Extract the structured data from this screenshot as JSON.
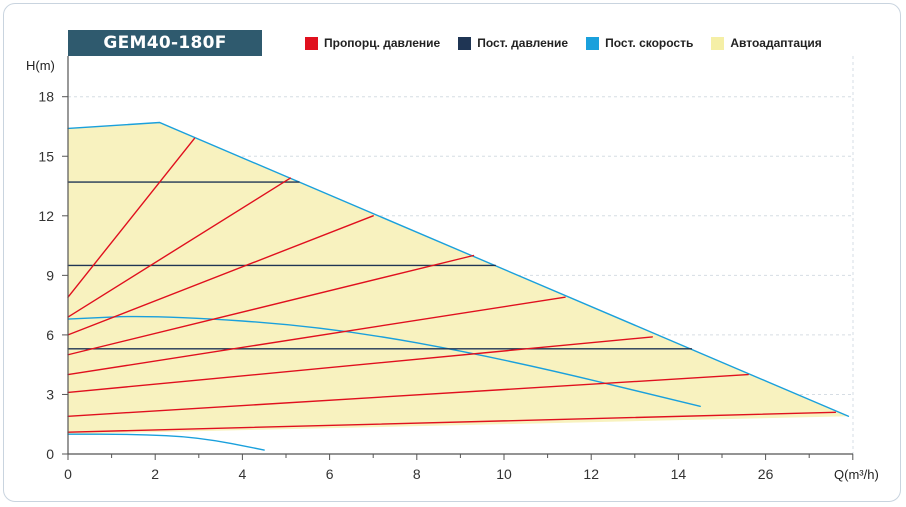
{
  "header": {
    "model": "GEM40-180F"
  },
  "legend": {
    "items": [
      {
        "label": "Пропорц. давление",
        "color": "#e0101e"
      },
      {
        "label": "Пост. давление",
        "color": "#1f3554"
      },
      {
        "label": "Пост. скорость",
        "color": "#1aa0dc"
      },
      {
        "label": "Автоадаптация",
        "color": "#f5efa6"
      }
    ]
  },
  "chart_data": {
    "type": "line",
    "ylabel": "H(m)",
    "xlabel": "Q(m³/h)",
    "x_ticks": [
      "0",
      "2",
      "4",
      "6",
      "8",
      "10",
      "12",
      "14",
      "26"
    ],
    "y_ticks": [
      0,
      3,
      6,
      9,
      12,
      15,
      18
    ],
    "ylim": [
      0,
      19
    ],
    "grid": true,
    "autoadapt_area": [
      [
        0,
        16.4
      ],
      [
        2.1,
        16.7
      ],
      [
        17.9,
        1.9
      ],
      [
        0,
        1.0
      ]
    ],
    "series": [
      {
        "name": "Пост. скорость",
        "color": "#1aa0dc",
        "points": [
          [
            0,
            16.4
          ],
          [
            2.1,
            16.7
          ],
          [
            17.9,
            1.9
          ]
        ]
      },
      {
        "name": "Пост. скорость",
        "color": "#1aa0dc",
        "points": [
          [
            0,
            6.8
          ],
          [
            2,
            7.0
          ],
          [
            6,
            6.4
          ],
          [
            10,
            4.8
          ],
          [
            14.5,
            2.4
          ]
        ]
      },
      {
        "name": "Пост. скорость",
        "color": "#1aa0dc",
        "points": [
          [
            0,
            1.0
          ],
          [
            1.5,
            1.0
          ],
          [
            3,
            0.85
          ],
          [
            4.5,
            0.2
          ]
        ]
      },
      {
        "name": "Пост. давление",
        "color": "#1f3554",
        "points": [
          [
            0,
            13.7
          ],
          [
            5.3,
            13.7
          ]
        ]
      },
      {
        "name": "Пост. давление",
        "color": "#1f3554",
        "points": [
          [
            0,
            9.5
          ],
          [
            9.8,
            9.5
          ]
        ]
      },
      {
        "name": "Пост. давление",
        "color": "#1f3554",
        "points": [
          [
            0,
            5.3
          ],
          [
            14.3,
            5.3
          ]
        ]
      },
      {
        "name": "Пропорц. давление",
        "color": "#e0101e",
        "points": [
          [
            0,
            7.9
          ],
          [
            2.9,
            15.9
          ]
        ]
      },
      {
        "name": "Пропорц. давление",
        "color": "#e0101e",
        "points": [
          [
            0,
            6.9
          ],
          [
            5.1,
            13.9
          ]
        ]
      },
      {
        "name": "Пропорц. давление",
        "color": "#e0101e",
        "points": [
          [
            0,
            6.0
          ],
          [
            7.0,
            12.0
          ]
        ]
      },
      {
        "name": "Пропорц. давление",
        "color": "#e0101e",
        "points": [
          [
            0,
            5.0
          ],
          [
            9.3,
            10.0
          ]
        ]
      },
      {
        "name": "Пропорц. давление",
        "color": "#e0101e",
        "points": [
          [
            0,
            4.0
          ],
          [
            11.4,
            7.9
          ]
        ]
      },
      {
        "name": "Пропорц. давление",
        "color": "#e0101e",
        "points": [
          [
            0,
            3.1
          ],
          [
            13.4,
            5.9
          ]
        ]
      },
      {
        "name": "Пропорц. давление",
        "color": "#e0101e",
        "points": [
          [
            0,
            1.9
          ],
          [
            15.6,
            4.0
          ]
        ]
      },
      {
        "name": "Пропорц. давление",
        "color": "#e0101e",
        "points": [
          [
            0,
            1.1
          ],
          [
            17.6,
            2.1
          ]
        ]
      }
    ]
  }
}
